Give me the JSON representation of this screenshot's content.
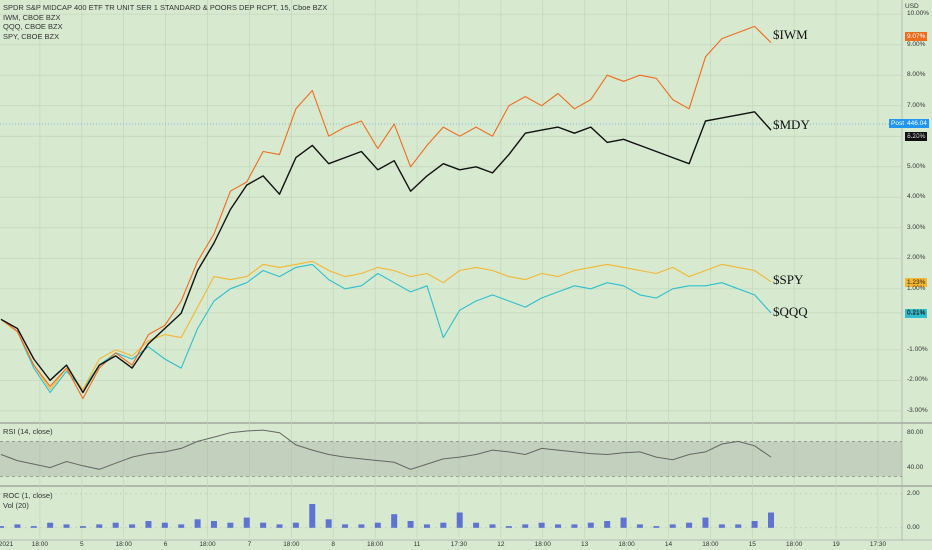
{
  "header": {
    "title": "SPDR S&P MIDCAP 400 ETF TR UNIT SER 1 STANDARD & POORS DEP RCPT, 15, Cboe BZX",
    "compare": [
      "IWM, CBOE BZX",
      "QQQ, CBOE BZX",
      "SPY, CBOE BZX"
    ],
    "currency": "USD"
  },
  "annotations": {
    "iwm": "$IWM",
    "mdy": "$MDY",
    "spy": "$SPY",
    "qqq": "$QQQ"
  },
  "price_tags": {
    "iwm": "9.07%",
    "mdy": "6.20%",
    "spy": "1.23%",
    "qqq": "0.21%",
    "post_label": "Post",
    "post_value": "446.04"
  },
  "colors": {
    "iwm": "#ef6c1e",
    "mdy": "#111111",
    "spy": "#f5b731",
    "qqq": "#2ebfd0",
    "rsi": "#666666",
    "vol": "#4a5fd0",
    "post": "#2196f3"
  },
  "panes": {
    "rsi_label": "RSI (14, close)",
    "roc_label": "ROC (1, close)",
    "vol_label": "Vol (20)"
  },
  "chart_data": [
    {
      "type": "line",
      "xlabel": "",
      "ylabel": "",
      "x_ticks": [
        "2021",
        "18:00",
        "5",
        "18:00",
        "6",
        "18:00",
        "7",
        "18:00",
        "8",
        "18:00",
        "11",
        "17:30",
        "12",
        "18:00",
        "13",
        "18:00",
        "14",
        "18:00",
        "15",
        "18:00",
        "19",
        "17:30"
      ],
      "y_ticks": [
        "-3.00%",
        "-2.00%",
        "-1.00%",
        "0.21%",
        "1.00%",
        "2.00%",
        "3.00%",
        "4.00%",
        "5.00%",
        "6.00%",
        "7.00%",
        "8.00%",
        "9.00%",
        "10.00%"
      ],
      "ylim": [
        -3.3,
        10.4
      ],
      "grid": true,
      "series": [
        {
          "name": "$IWM",
          "values": [
            0,
            -0.4,
            -1.5,
            -2.2,
            -1.6,
            -2.6,
            -1.6,
            -1.1,
            -1.5,
            -0.5,
            -0.2,
            0.6,
            1.9,
            2.8,
            4.2,
            4.5,
            5.5,
            5.4,
            6.9,
            7.5,
            6.0,
            6.3,
            6.5,
            5.6,
            6.4,
            5.0,
            5.7,
            6.3,
            6.0,
            6.3,
            6.0,
            7.0,
            7.3,
            7.0,
            7.4,
            6.9,
            7.2,
            8.0,
            7.8,
            8.0,
            7.9,
            7.2,
            6.9,
            8.6,
            9.2,
            9.4,
            9.6,
            9.07
          ]
        },
        {
          "name": "$MDY",
          "values": [
            0,
            -0.3,
            -1.3,
            -2.0,
            -1.5,
            -2.4,
            -1.5,
            -1.2,
            -1.6,
            -0.8,
            -0.3,
            0.2,
            1.6,
            2.5,
            3.6,
            4.4,
            4.7,
            4.1,
            5.3,
            5.7,
            5.1,
            5.3,
            5.5,
            4.9,
            5.2,
            4.2,
            4.7,
            5.1,
            4.9,
            5.0,
            4.8,
            5.4,
            6.1,
            6.2,
            6.3,
            6.1,
            6.3,
            5.8,
            5.9,
            5.7,
            5.5,
            5.3,
            5.1,
            6.5,
            6.6,
            6.7,
            6.8,
            6.2
          ]
        },
        {
          "name": "$SPY",
          "values": [
            0,
            -0.4,
            -1.5,
            -2.3,
            -1.6,
            -2.3,
            -1.3,
            -1.0,
            -1.2,
            -0.7,
            -0.5,
            -0.6,
            0.4,
            1.4,
            1.3,
            1.4,
            1.8,
            1.7,
            1.8,
            1.9,
            1.6,
            1.4,
            1.5,
            1.7,
            1.6,
            1.4,
            1.5,
            1.2,
            1.6,
            1.7,
            1.6,
            1.4,
            1.3,
            1.5,
            1.4,
            1.6,
            1.7,
            1.8,
            1.7,
            1.6,
            1.5,
            1.7,
            1.4,
            1.6,
            1.8,
            1.7,
            1.6,
            1.23
          ]
        },
        {
          "name": "$QQQ",
          "values": [
            0,
            -0.4,
            -1.6,
            -2.4,
            -1.7,
            -2.3,
            -1.5,
            -1.1,
            -1.3,
            -0.9,
            -1.3,
            -1.6,
            -0.3,
            0.6,
            1.0,
            1.2,
            1.6,
            1.4,
            1.7,
            1.8,
            1.3,
            1.0,
            1.1,
            1.5,
            1.2,
            0.9,
            1.1,
            -0.6,
            0.3,
            0.6,
            0.8,
            0.6,
            0.4,
            0.7,
            0.9,
            1.1,
            1.0,
            1.2,
            1.1,
            0.8,
            0.7,
            1.0,
            1.1,
            1.1,
            1.2,
            1.0,
            0.8,
            0.21
          ]
        }
      ]
    },
    {
      "type": "line",
      "title": "RSI (14, close)",
      "y_ticks": [
        "80.00",
        "40.00"
      ],
      "ylim": [
        20,
        90
      ],
      "band": [
        30,
        70
      ],
      "series": [
        {
          "name": "RSI (14, close)",
          "values": [
            55,
            48,
            44,
            40,
            47,
            42,
            38,
            45,
            52,
            56,
            58,
            62,
            70,
            75,
            80,
            82,
            83,
            80,
            66,
            60,
            55,
            52,
            50,
            48,
            46,
            38,
            44,
            50,
            52,
            55,
            60,
            58,
            55,
            62,
            60,
            58,
            56,
            55,
            57,
            58,
            52,
            49,
            55,
            58,
            67,
            70,
            65,
            52
          ]
        }
      ]
    },
    {
      "type": "bar",
      "title": "ROC (1, close)",
      "y_ticks": [
        "2.00",
        "0.00"
      ],
      "ylim": [
        -0.6,
        2.4
      ],
      "series": [
        {
          "name": "Vol (20)",
          "values": [
            0.1,
            0.2,
            0.1,
            0.3,
            0.2,
            0.1,
            0.2,
            0.3,
            0.2,
            0.4,
            0.3,
            0.2,
            0.5,
            0.4,
            0.3,
            0.6,
            0.3,
            0.2,
            0.3,
            1.4,
            0.5,
            0.2,
            0.2,
            0.3,
            0.8,
            0.4,
            0.2,
            0.3,
            0.9,
            0.3,
            0.2,
            0.1,
            0.2,
            0.3,
            0.2,
            0.2,
            0.3,
            0.4,
            0.6,
            0.2,
            0.1,
            0.2,
            0.3,
            0.6,
            0.2,
            0.2,
            0.4,
            0.9
          ]
        }
      ]
    }
  ]
}
